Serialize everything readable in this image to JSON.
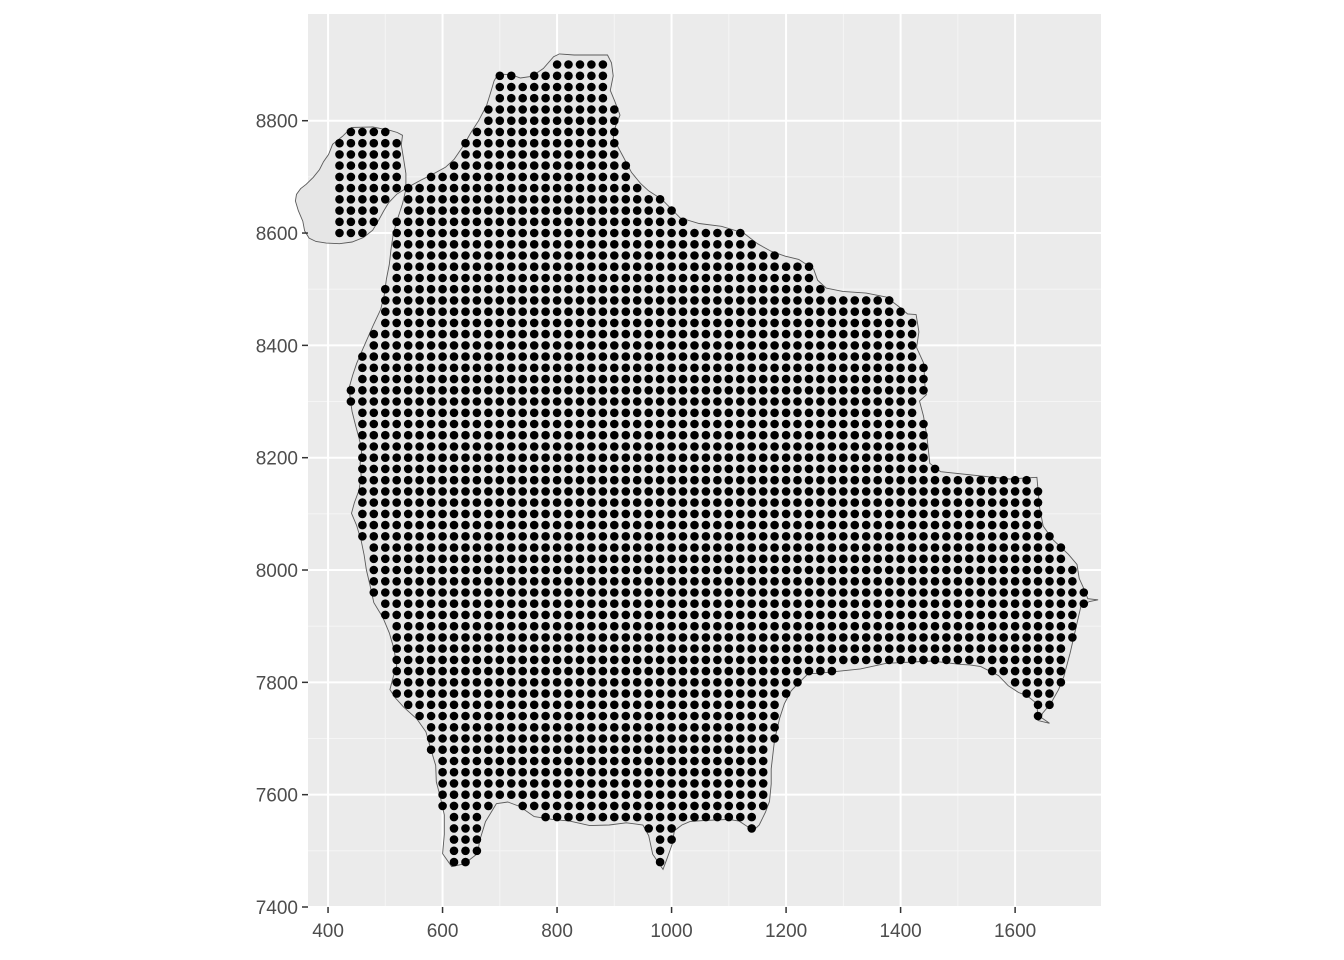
{
  "chart_data": {
    "type": "scatter",
    "title": "",
    "xlabel": "",
    "ylabel": "",
    "xlim": [
      365,
      1750
    ],
    "ylim": [
      7400,
      8990
    ],
    "x_ticks": [
      400,
      600,
      800,
      1000,
      1200,
      1400,
      1600
    ],
    "y_ticks": [
      7400,
      7600,
      7800,
      8000,
      8200,
      8400,
      8600,
      8800
    ],
    "grid": true,
    "legend": "none",
    "colors": {
      "panel_background": "#ebebeb",
      "grid_major": "#ffffff",
      "grid_minor": "#f5f5f5",
      "polygon_fill": "#e6e6e6",
      "polygon_stroke": "#5a5a5a",
      "points": "#000000",
      "tick_text": "#4d4d4d"
    },
    "grid_spacing": 20,
    "boundary": [
      [
        888,
        8917
      ],
      [
        895,
        8903
      ],
      [
        898,
        8880
      ],
      [
        893,
        8854
      ],
      [
        901,
        8834
      ],
      [
        910,
        8810
      ],
      [
        902,
        8790
      ],
      [
        898,
        8769
      ],
      [
        915,
        8737
      ],
      [
        930,
        8708
      ],
      [
        946,
        8688
      ],
      [
        960,
        8675
      ],
      [
        983,
        8660
      ],
      [
        1015,
        8627
      ],
      [
        1048,
        8617
      ],
      [
        1087,
        8612
      ],
      [
        1126,
        8600
      ],
      [
        1150,
        8581
      ],
      [
        1173,
        8568
      ],
      [
        1198,
        8559
      ],
      [
        1222,
        8553
      ],
      [
        1248,
        8536
      ],
      [
        1255,
        8516
      ],
      [
        1270,
        8502
      ],
      [
        1299,
        8496
      ],
      [
        1340,
        8493
      ],
      [
        1375,
        8486
      ],
      [
        1397,
        8469
      ],
      [
        1412,
        8456
      ],
      [
        1427,
        8455
      ],
      [
        1432,
        8424
      ],
      [
        1428,
        8396
      ],
      [
        1440,
        8369
      ],
      [
        1442,
        8340
      ],
      [
        1443,
        8317
      ],
      [
        1445,
        8312
      ],
      [
        1433,
        8301
      ],
      [
        1440,
        8274
      ],
      [
        1446,
        8238
      ],
      [
        1451,
        8190
      ],
      [
        1470,
        8175
      ],
      [
        1590,
        8162
      ],
      [
        1638,
        8165
      ],
      [
        1643,
        8110
      ],
      [
        1649,
        8078
      ],
      [
        1666,
        8054
      ],
      [
        1693,
        8028
      ],
      [
        1708,
        8010
      ],
      [
        1712,
        7985
      ],
      [
        1719,
        7969
      ],
      [
        1727,
        7949
      ],
      [
        1745,
        7947
      ],
      [
        1730,
        7944
      ],
      [
        1715,
        7936
      ],
      [
        1706,
        7896
      ],
      [
        1696,
        7852
      ],
      [
        1685,
        7810
      ],
      [
        1676,
        7787
      ],
      [
        1662,
        7762
      ],
      [
        1648,
        7745
      ],
      [
        1645,
        7738
      ],
      [
        1660,
        7727
      ],
      [
        1640,
        7732
      ],
      [
        1638,
        7762
      ],
      [
        1621,
        7776
      ],
      [
        1606,
        7782
      ],
      [
        1588,
        7794
      ],
      [
        1571,
        7812
      ],
      [
        1540,
        7828
      ],
      [
        1521,
        7831
      ],
      [
        1505,
        7832
      ],
      [
        1455,
        7838
      ],
      [
        1375,
        7834
      ],
      [
        1330,
        7824
      ],
      [
        1255,
        7816
      ],
      [
        1239,
        7816
      ],
      [
        1223,
        7800
      ],
      [
        1209,
        7785
      ],
      [
        1197,
        7762
      ],
      [
        1189,
        7737
      ],
      [
        1180,
        7698
      ],
      [
        1174,
        7646
      ],
      [
        1174,
        7619
      ],
      [
        1171,
        7588
      ],
      [
        1164,
        7569
      ],
      [
        1153,
        7546
      ],
      [
        1144,
        7537
      ],
      [
        1133,
        7543
      ],
      [
        1118,
        7553
      ],
      [
        1100,
        7556
      ],
      [
        1056,
        7554
      ],
      [
        1032,
        7552
      ],
      [
        1018,
        7546
      ],
      [
        1005,
        7536
      ],
      [
        1001,
        7512
      ],
      [
        992,
        7486
      ],
      [
        985,
        7467
      ],
      [
        967,
        7494
      ],
      [
        960,
        7527
      ],
      [
        950,
        7546
      ],
      [
        921,
        7550
      ],
      [
        891,
        7546
      ],
      [
        857,
        7545
      ],
      [
        822,
        7553
      ],
      [
        792,
        7556
      ],
      [
        760,
        7561
      ],
      [
        735,
        7579
      ],
      [
        714,
        7587
      ],
      [
        694,
        7584
      ],
      [
        675,
        7552
      ],
      [
        665,
        7519
      ],
      [
        661,
        7495
      ],
      [
        638,
        7477
      ],
      [
        616,
        7472
      ],
      [
        600,
        7495
      ],
      [
        603,
        7529
      ],
      [
        603,
        7564
      ],
      [
        596,
        7596
      ],
      [
        589,
        7623
      ],
      [
        588,
        7652
      ],
      [
        578,
        7686
      ],
      [
        571,
        7712
      ],
      [
        555,
        7735
      ],
      [
        532,
        7756
      ],
      [
        517,
        7773
      ],
      [
        508,
        7787
      ],
      [
        514,
        7810
      ],
      [
        520,
        7830
      ],
      [
        515,
        7860
      ],
      [
        507,
        7888
      ],
      [
        496,
        7915
      ],
      [
        480,
        7942
      ],
      [
        474,
        7970
      ],
      [
        467,
        8000
      ],
      [
        463,
        8027
      ],
      [
        458,
        8052
      ],
      [
        450,
        8079
      ],
      [
        441,
        8101
      ],
      [
        446,
        8120
      ],
      [
        454,
        8142
      ],
      [
        458,
        8167
      ],
      [
        456,
        8190
      ],
      [
        459,
        8214
      ],
      [
        454,
        8235
      ],
      [
        448,
        8258
      ],
      [
        442,
        8282
      ],
      [
        439,
        8302
      ],
      [
        437,
        8325
      ],
      [
        443,
        8347
      ],
      [
        450,
        8368
      ],
      [
        460,
        8392
      ],
      [
        470,
        8415
      ],
      [
        480,
        8438
      ],
      [
        492,
        8464
      ],
      [
        498,
        8489
      ],
      [
        502,
        8518
      ],
      [
        507,
        8544
      ],
      [
        510,
        8571
      ],
      [
        514,
        8599
      ],
      [
        521,
        8624
      ],
      [
        530,
        8652
      ],
      [
        536,
        8678
      ],
      [
        536,
        8706
      ],
      [
        532,
        8732
      ],
      [
        528,
        8757
      ],
      [
        530,
        8774
      ],
      [
        521,
        8779
      ],
      [
        508,
        8783
      ],
      [
        487,
        8787
      ],
      [
        478,
        8789
      ],
      [
        441,
        8788
      ],
      [
        425,
        8772
      ],
      [
        408,
        8758
      ],
      [
        401,
        8740
      ],
      [
        392,
        8727
      ],
      [
        385,
        8713
      ],
      [
        374,
        8699
      ],
      [
        362,
        8687
      ],
      [
        352,
        8679
      ],
      [
        345,
        8669
      ],
      [
        343,
        8657
      ],
      [
        348,
        8640
      ],
      [
        356,
        8621
      ],
      [
        359,
        8604
      ],
      [
        367,
        8591
      ],
      [
        379,
        8585
      ],
      [
        397,
        8582
      ],
      [
        420,
        8581
      ],
      [
        442,
        8584
      ],
      [
        462,
        8592
      ],
      [
        478,
        8605
      ],
      [
        488,
        8622
      ],
      [
        497,
        8639
      ],
      [
        506,
        8654
      ],
      [
        520,
        8669
      ],
      [
        540,
        8682
      ],
      [
        562,
        8694
      ],
      [
        585,
        8706
      ],
      [
        605,
        8717
      ],
      [
        620,
        8731
      ],
      [
        636,
        8755
      ],
      [
        649,
        8778
      ],
      [
        663,
        8800
      ],
      [
        677,
        8827
      ],
      [
        684,
        8850
      ],
      [
        690,
        8871
      ],
      [
        697,
        8883
      ],
      [
        720,
        8882
      ],
      [
        736,
        8876
      ],
      [
        756,
        8879
      ],
      [
        776,
        8893
      ],
      [
        794,
        8914
      ],
      [
        804,
        8919
      ],
      [
        830,
        8917
      ],
      [
        857,
        8917
      ],
      [
        888,
        8917
      ]
    ]
  }
}
